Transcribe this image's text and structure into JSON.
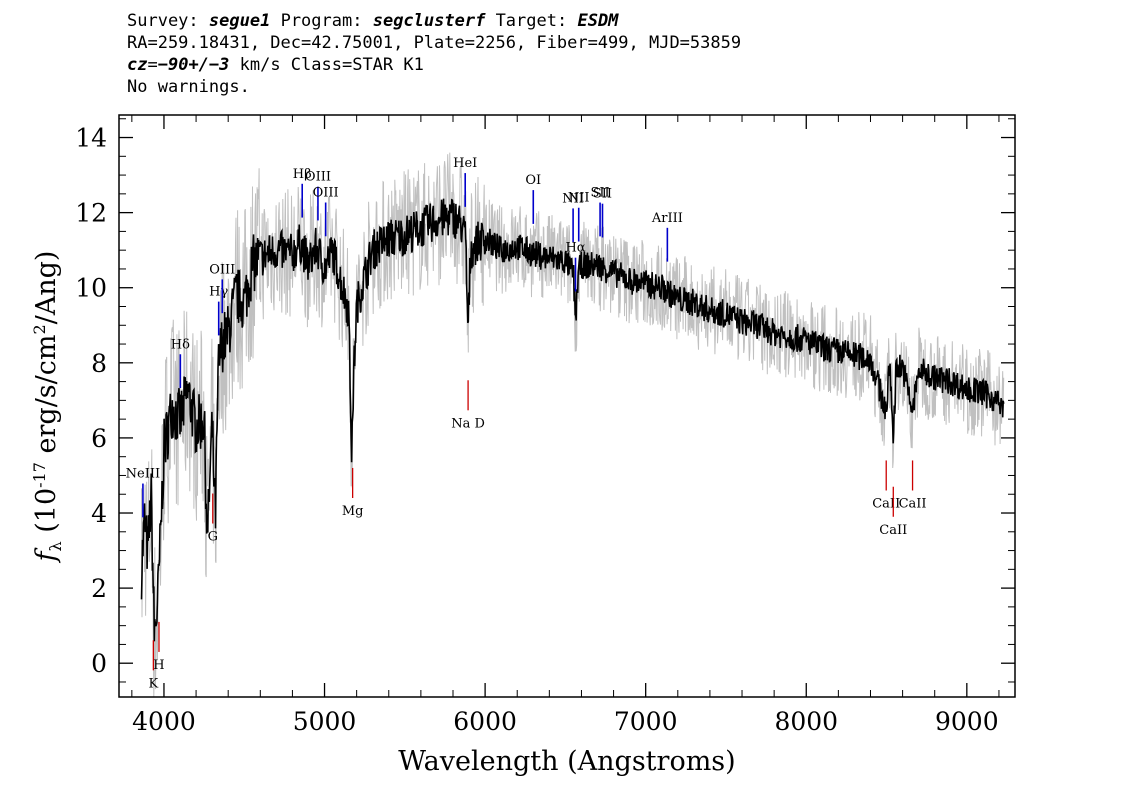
{
  "header": {
    "survey_label": "Survey:",
    "survey": "segue1",
    "program_label": "Program:",
    "program": "segclusterf",
    "target_label": "Target:",
    "target": "ESDM",
    "line2": "RA=259.18431, Dec=42.75001, Plate=2256, Fiber=499, MJD=53859",
    "cz_label": "cz",
    "cz_eq": "=",
    "cz_value": "−90+/−3",
    "cz_rest": " km/s Class=STAR K1",
    "line4": "No warnings."
  },
  "chart_data": {
    "type": "line",
    "xlabel": "Wavelength (Angstroms)",
    "ylabel": "f_λ (10^-17 erg/s/cm^2/Ang)",
    "xlim": [
      3720,
      9300
    ],
    "ylim": [
      -0.9,
      14.6
    ],
    "x_ticks": [
      4000,
      5000,
      6000,
      7000,
      8000,
      9000
    ],
    "y_ticks": [
      0,
      2,
      4,
      6,
      8,
      10,
      12,
      14
    ],
    "series": [
      {
        "style": "flux",
        "color": "#000000",
        "x": [
          3860,
          3880,
          3900,
          3920,
          3940,
          3960,
          3980,
          4000,
          4050,
          4100,
          4150,
          4200,
          4250,
          4270,
          4300,
          4320,
          4340,
          4360,
          4400,
          4450,
          4500,
          4550,
          4600,
          4700,
          4800,
          4850,
          4900,
          4950,
          5000,
          5050,
          5100,
          5150,
          5170,
          5180,
          5200,
          5250,
          5300,
          5400,
          5500,
          5600,
          5700,
          5800,
          5850,
          5880,
          5893,
          5910,
          5950,
          6000,
          6100,
          6200,
          6300,
          6400,
          6500,
          6550,
          6563,
          6580,
          6600,
          6700,
          6800,
          6900,
          7000,
          7100,
          7200,
          7300,
          7400,
          7500,
          7600,
          7700,
          7800,
          7900,
          8000,
          8100,
          8200,
          8300,
          8400,
          8498,
          8520,
          8542,
          8560,
          8600,
          8662,
          8700,
          8800,
          8900,
          9000,
          9100,
          9150,
          9200,
          9230
        ],
        "y": [
          2.5,
          3.8,
          2.9,
          4.5,
          0.8,
          1.5,
          3.5,
          5.7,
          6.8,
          6.5,
          7.2,
          6.3,
          6.5,
          3.3,
          6.3,
          3.9,
          7.9,
          8.5,
          8.8,
          9.8,
          9.6,
          10.6,
          10.8,
          11.0,
          10.9,
          11.2,
          10.6,
          11.1,
          10.5,
          11.0,
          10.2,
          9.4,
          5.5,
          7.5,
          9.5,
          10.3,
          11.0,
          11.3,
          11.4,
          11.6,
          11.8,
          11.9,
          11.7,
          11.3,
          8.7,
          11.0,
          11.2,
          11.3,
          11.0,
          11.1,
          10.9,
          10.8,
          10.7,
          10.4,
          9.1,
          10.4,
          10.6,
          10.6,
          10.4,
          10.2,
          10.1,
          10.0,
          9.7,
          9.6,
          9.4,
          9.3,
          9.1,
          9.0,
          8.8,
          8.7,
          8.6,
          8.4,
          8.3,
          8.2,
          8.1,
          6.7,
          8.0,
          6.0,
          7.9,
          7.9,
          6.7,
          7.8,
          7.6,
          7.5,
          7.3,
          7.2,
          7.1,
          6.9,
          6.7
        ]
      }
    ],
    "emission_lines": [
      {
        "label": "NeIII",
        "x": 3869
      },
      {
        "label": "Hδ",
        "x": 4102
      },
      {
        "label": "Hγ",
        "x": 4341
      },
      {
        "label": "OIII",
        "x": 4363
      },
      {
        "label": "Hβ",
        "x": 4861
      },
      {
        "label": "OIII",
        "x": 4959
      },
      {
        "label": "OIII",
        "x": 5007
      },
      {
        "label": "HeI",
        "x": 5876
      },
      {
        "label": "OI",
        "x": 6300
      },
      {
        "label": "NII",
        "x": 6548
      },
      {
        "label": "Hα",
        "x": 6563
      },
      {
        "label": "NII",
        "x": 6583
      },
      {
        "label": "SII",
        "x": 6716
      },
      {
        "label": "SII",
        "x": 6731
      },
      {
        "label": "ArIII",
        "x": 7135
      }
    ],
    "absorption_lines": [
      {
        "label": "K",
        "x": 3934
      },
      {
        "label": "H",
        "x": 3969
      },
      {
        "label": "G",
        "x": 4304
      },
      {
        "label": "Mg",
        "x": 5175
      },
      {
        "label": "Na D",
        "x": 5894
      },
      {
        "label": "CaII",
        "x": 8498
      },
      {
        "label": "CaII",
        "x": 8542
      },
      {
        "label": "CaII",
        "x": 8662
      }
    ]
  }
}
